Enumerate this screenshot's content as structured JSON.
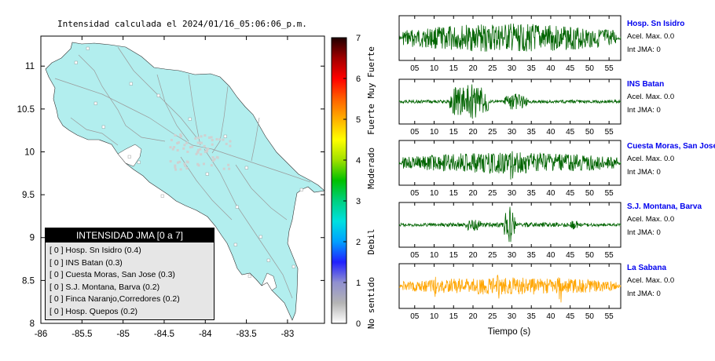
{
  "map": {
    "title": "Intensidad calculada el 2024/01/16_05:06:06_p.m.",
    "land_color": "#b2eeee",
    "sea_color": "#ffffff",
    "x_ticks": [
      "-86",
      "-85.5",
      "-85",
      "-84.5",
      "-84",
      "-83.5",
      "-83"
    ],
    "y_ticks": [
      "11",
      "10.5",
      "10",
      "9.5",
      "9",
      "8.5",
      "8"
    ],
    "xlim": [
      -86,
      -82.55
    ],
    "ylim": [
      8,
      11.35
    ]
  },
  "legend": {
    "title": "INTENSIDAD JMA [0 a 7]",
    "items": [
      "[ 0 ]  Hosp. Sn Isidro (0.4)",
      "[ 0 ]  INS Batan (0.3)",
      "[ 0 ]  Cuesta Moras, San Jose (0.3)",
      "[ 0 ]  S.J. Montana, Barva (0.2)",
      "[ 0 ]  Finca Naranjo,Corredores (0.2)",
      "[ 0 ]  Hosp. Quepos (0.2)"
    ]
  },
  "colorbar": {
    "ticks": [
      "0",
      "1",
      "2",
      "3",
      "4",
      "5",
      "6",
      "7"
    ],
    "labels": [
      "No sentido",
      "Debil",
      "Moderado",
      "Fuerte",
      "Muy Fuerte"
    ],
    "colors": [
      "#ffffff",
      "#b4b4b4",
      "#9090d0",
      "#2020ff",
      "#00a0ff",
      "#00e0e0",
      "#00d080",
      "#00c000",
      "#a0e000",
      "#ffff00",
      "#ffb000",
      "#ff6000",
      "#ff0000",
      "#a00000",
      "#200000"
    ]
  },
  "chart_data": {
    "type": "line",
    "xlabel": "Tiempo (s)",
    "xlim": [
      1,
      58
    ],
    "x_ticks": [
      "05",
      "10",
      "15",
      "20",
      "25",
      "30",
      "35",
      "40",
      "45",
      "50",
      "55"
    ],
    "series": [
      {
        "name": "Hosp. Sn Isidro",
        "acel_max": "Acel. Max. 0.0",
        "int_jma": "Int JMA: 0",
        "color": "#006400"
      },
      {
        "name": "INS Batan",
        "acel_max": "Acel. Max. 0.0",
        "int_jma": "Int JMA: 0",
        "color": "#006400"
      },
      {
        "name": "Cuesta Moras, San Jose",
        "acel_max": "Acel. Max. 0.0",
        "int_jma": "Int JMA: 0",
        "color": "#006400"
      },
      {
        "name": "S.J. Montana, Barva",
        "acel_max": "Acel. Max. 0.0",
        "int_jma": "Int JMA: 0",
        "color": "#006400"
      },
      {
        "name": "La Sabana",
        "acel_max": "Acel. Max. 0.0",
        "int_jma": "Int JMA: 0",
        "color": "#ffa500"
      }
    ]
  }
}
